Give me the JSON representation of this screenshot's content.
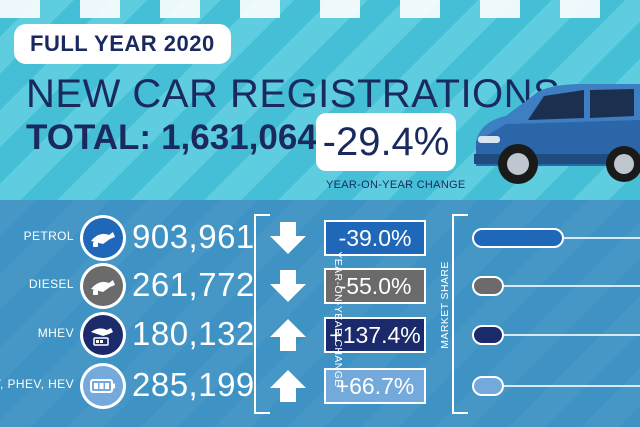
{
  "header": {
    "period": "FULL YEAR 2020",
    "headline": "NEW CAR REGISTRATIONS",
    "total_label": "TOTAL:",
    "total_value": "1,631,064",
    "total_change": "-29.4%",
    "change_caption": "YEAR-ON-YEAR CHANGE"
  },
  "axes": {
    "yoy_label": "YEAR-ON-YEAR CHANGE",
    "share_label": "MARKET SHARE"
  },
  "rows": [
    {
      "label": "PETROL",
      "count": "903,961",
      "change": "-39.0%",
      "direction": "down",
      "share_level": 0.55,
      "chip_color": "#1f67b8",
      "bar_color": "#1f67b8",
      "icon": "fuel-pump-icon"
    },
    {
      "label": "DIESEL",
      "count": "261,772",
      "change": "-55.0%",
      "direction": "down",
      "share_level": 0.16,
      "chip_color": "#6b6b6b",
      "bar_color": "#6b6b6b",
      "icon": "fuel-pump-icon"
    },
    {
      "label": "MHEV",
      "count": "180,132",
      "change": "+137.4%",
      "direction": "up",
      "share_level": 0.11,
      "chip_color": "#1a2a6b",
      "bar_color": "#1a2a6b",
      "icon": "fuel-pump-battery-icon"
    },
    {
      "label": "EV, PHEV, HEV",
      "count": "285,199",
      "change": "+66.7%",
      "direction": "up",
      "share_level": 0.17,
      "chip_color": "#74a9dc",
      "bar_color": "#74a9dc",
      "icon": "battery-icon"
    }
  ],
  "colors": {
    "navy": "#1a2a5e",
    "panel": "#3e93c4",
    "background": "#45bfd6"
  }
}
